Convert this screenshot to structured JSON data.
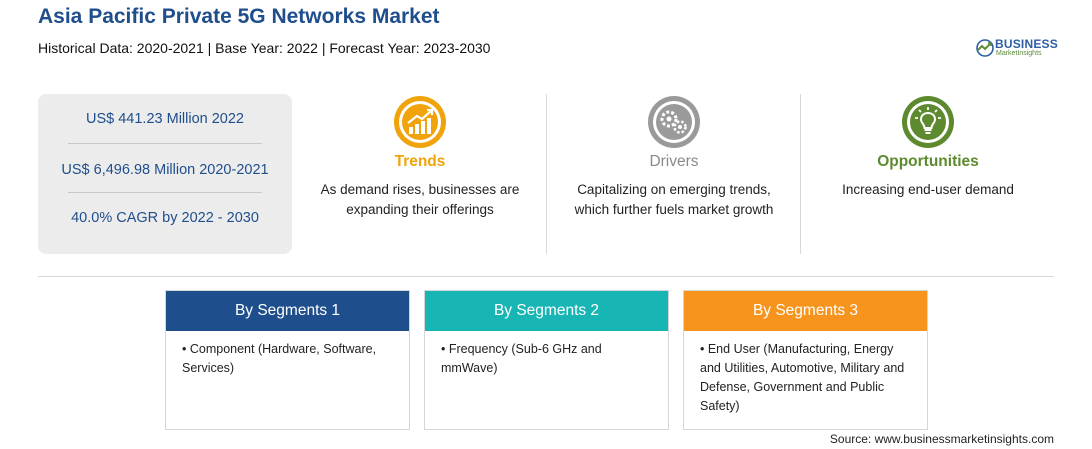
{
  "header": {
    "title": "Asia Pacific Private 5G Networks Market",
    "subtitle": "Historical Data: 2020-2021 | Base Year: 2022 | Forecast Year: 2023-2030"
  },
  "logo": {
    "name": "BUSINESS",
    "sub": "MarketInsights"
  },
  "stats": [
    "US$ 441.23 Million 2022",
    "US$ 6,496.98 Million 2020-2021",
    "40.0% CAGR by 2022 - 2030"
  ],
  "columns": {
    "trends": {
      "title": "Trends",
      "icon": "growth-chart-icon",
      "color": "#f0a30a",
      "text": "As demand rises, businesses are expanding their offerings"
    },
    "drivers": {
      "title": "Drivers",
      "icon": "gears-icon",
      "color": "#8a8a8a",
      "text": "Capitalizing on emerging trends, which further fuels market growth"
    },
    "opportunities": {
      "title": "Opportunities",
      "icon": "lightbulb-icon",
      "color": "#5d8a2e",
      "text": "Increasing end-user demand"
    }
  },
  "segments": [
    {
      "title": "By Segments 1",
      "color": "#1f4e8c",
      "item": "• Component (Hardware, Software, Services)"
    },
    {
      "title": "By Segments 2",
      "color": "#18b5b5",
      "item": "• Frequency (Sub-6 GHz and mmWave)"
    },
    {
      "title": "By Segments 3",
      "color": "#f7941d",
      "item": "• End User (Manufacturing, Energy and Utilities, Automotive, Military and Defense, Government and Public Safety)"
    }
  ],
  "source": "Source: www.businessmarketinsights.com"
}
